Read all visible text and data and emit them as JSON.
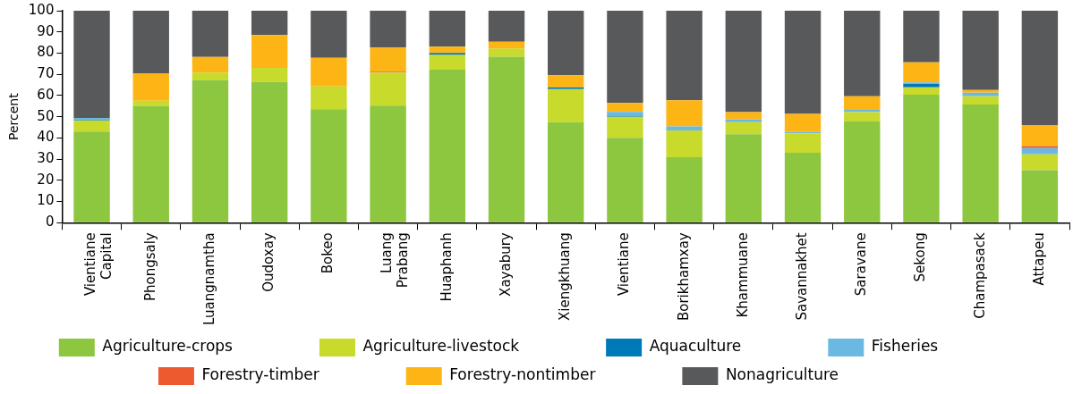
{
  "chart_data": {
    "type": "bar",
    "stacked": true,
    "ylabel": "Percent",
    "ylim": [
      0,
      100
    ],
    "yticks": [
      0,
      10,
      20,
      30,
      40,
      50,
      60,
      70,
      80,
      90,
      100
    ],
    "grid": false,
    "legend": "bottom",
    "categories": [
      "Vientiane Capital",
      "Phongsaly",
      "Luangnamtha",
      "Oudoxay",
      "Bokeo",
      "Luang Prabang",
      "Huaphanh",
      "Xayabury",
      "Xiengkhuang",
      "Vientiane",
      "Borikhamxay",
      "Khammuane",
      "Savannakhet",
      "Saravane",
      "Sekong",
      "Champasack",
      "Attapeu"
    ],
    "series": [
      {
        "name": "Agriculture-crops",
        "color": "#8dc63f",
        "values": [
          43.0,
          55.0,
          67.3,
          66.4,
          53.5,
          55.2,
          72.2,
          78.3,
          47.4,
          40.0,
          30.9,
          41.7,
          33.0,
          47.8,
          60.4,
          55.7,
          24.8
        ]
      },
      {
        "name": "Agriculture-livestock",
        "color": "#c8da2b",
        "values": [
          5.3,
          2.5,
          3.5,
          6.6,
          10.8,
          15.6,
          6.9,
          3.9,
          15.6,
          10.0,
          12.6,
          5.7,
          9.2,
          4.4,
          3.5,
          3.9,
          7.5
        ]
      },
      {
        "name": "Aquaculture",
        "color": "#0079b8",
        "values": [
          0.3,
          0,
          0,
          0,
          0,
          0,
          1.0,
          0,
          0.9,
          0.4,
          0,
          0,
          0,
          0,
          1.5,
          0,
          0
        ]
      },
      {
        "name": "Fisheries",
        "color": "#6bb9e3",
        "values": [
          0.8,
          0,
          0,
          0,
          0,
          0,
          0,
          0,
          0,
          1.9,
          1.9,
          1.4,
          0.6,
          1.0,
          0.8,
          1.7,
          2.9
        ]
      },
      {
        "name": "Forestry-timber",
        "color": "#ee5a2f",
        "values": [
          0,
          0,
          0,
          0,
          0,
          0.4,
          0,
          0,
          0,
          0,
          0,
          0,
          0,
          0,
          0,
          0,
          1.0
        ]
      },
      {
        "name": "Forestry-nontimber",
        "color": "#fdb515",
        "values": [
          0,
          13.0,
          7.4,
          15.5,
          13.5,
          11.4,
          2.9,
          3.2,
          5.7,
          4.2,
          12.4,
          3.4,
          8.5,
          6.4,
          9.5,
          1.3,
          9.9
        ]
      },
      {
        "name": "Nonagriculture",
        "color": "#58595b",
        "values": [
          50.6,
          29.5,
          21.8,
          11.5,
          22.2,
          17.4,
          17.0,
          14.6,
          30.4,
          43.5,
          42.2,
          47.8,
          48.7,
          40.4,
          24.3,
          37.4,
          53.9
        ]
      }
    ]
  }
}
